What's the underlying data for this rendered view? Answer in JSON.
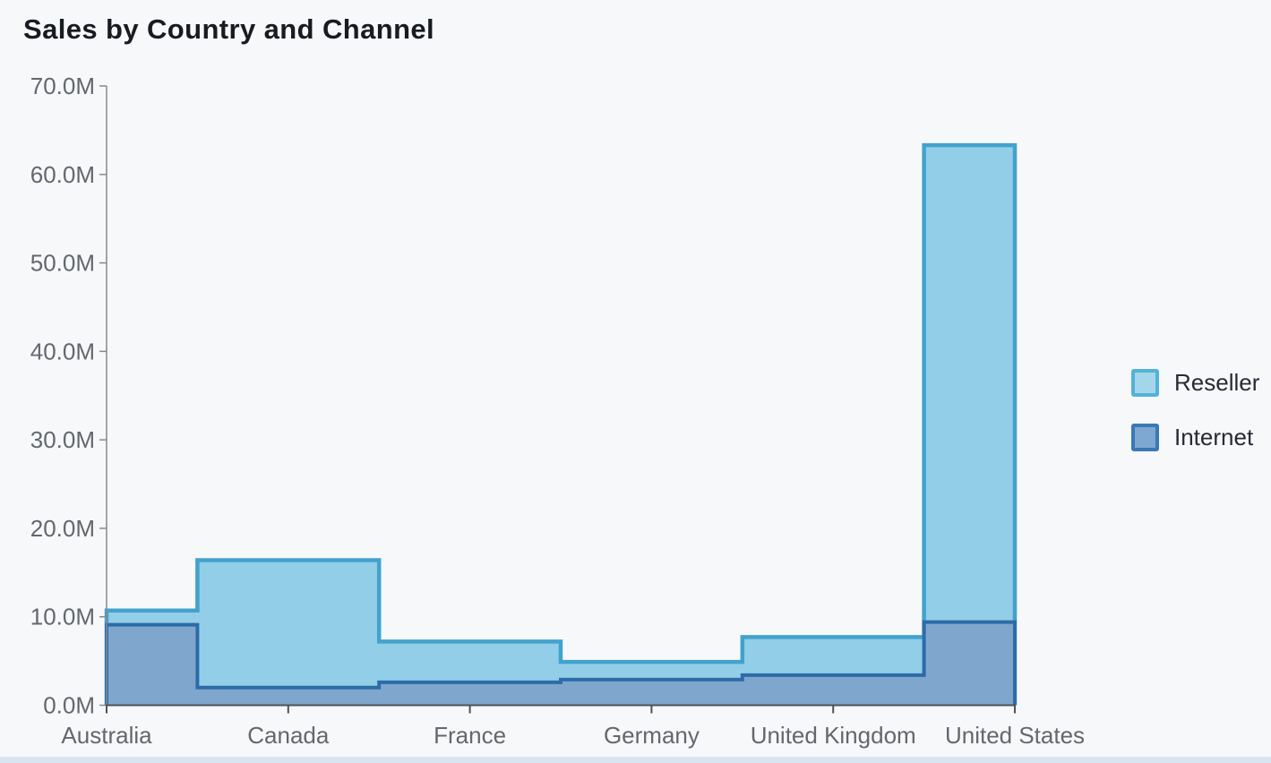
{
  "title": "Sales by Country and Channel",
  "legend": {
    "position": "right",
    "items": [
      {
        "label": "Reseller",
        "swatch_fill": "#a4d6ea",
        "swatch_border": "#53b2da"
      },
      {
        "label": "Internet",
        "swatch_fill": "#7ea8d2",
        "swatch_border": "#3a78b6"
      }
    ]
  },
  "colors": {
    "background": "#f7f8fa",
    "title_text": "#171b22",
    "axis_label": "#63676e",
    "y_axis_line": "#85898f",
    "x_baseline": "#4e5257",
    "reseller_fill": "#92cee8",
    "reseller_stroke": "#42a2ce",
    "internet_fill": "#7fa6cd",
    "internet_stroke": "#2d6ca8",
    "bottom_strip": "#dbe5f1"
  },
  "chart_data": {
    "type": "area",
    "step": "middle",
    "stacked": true,
    "grid": false,
    "title": "Sales by Country and Channel",
    "xlabel": "",
    "ylabel": "",
    "legend_position": "right",
    "categories": [
      "Australia",
      "Canada",
      "France",
      "Germany",
      "United Kingdom",
      "United States"
    ],
    "series": [
      {
        "name": "Reseller",
        "values_millions": [
          1.6,
          14.4,
          4.6,
          2.0,
          4.3,
          53.9
        ],
        "fill": "#92cee8",
        "stroke": "#42a2ce"
      },
      {
        "name": "Internet",
        "values_millions": [
          9.1,
          2.0,
          2.6,
          2.9,
          3.4,
          9.4
        ],
        "fill": "#7fa6cd",
        "stroke": "#2d6ca8"
      }
    ],
    "stack_order_bottom_to_top": [
      "Internet",
      "Reseller"
    ],
    "stack_tops_millions": [
      10.7,
      16.4,
      7.2,
      4.9,
      7.7,
      63.3
    ],
    "ylim_millions": [
      0,
      70
    ],
    "y_tick_interval_millions": 10,
    "y_tick_labels": [
      "0.0M",
      "10.0M",
      "20.0M",
      "30.0M",
      "40.0M",
      "50.0M",
      "60.0M",
      "70.0M"
    ]
  }
}
